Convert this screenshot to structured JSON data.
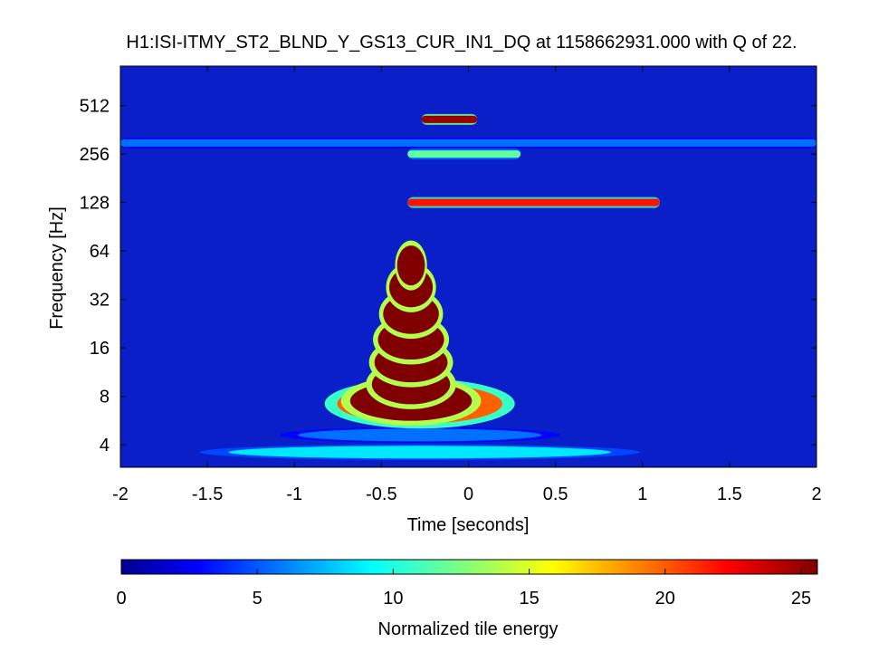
{
  "chart_data": {
    "type": "heatmap",
    "title": "H1:ISI-ITMY_ST2_BLND_Y_GS13_CUR_IN1_DQ at 1158662931.000 with Q of 22.",
    "xlabel": "Time [seconds]",
    "ylabel": "Frequency [Hz]",
    "xlim": [
      -2,
      2
    ],
    "x_ticks": [
      -2,
      -1.5,
      -1,
      -0.5,
      0,
      0.5,
      1,
      1.5,
      2
    ],
    "y_scale": "log2",
    "ylim": [
      2.9,
      900
    ],
    "y_ticks": [
      4,
      8,
      16,
      32,
      64,
      128,
      256,
      512
    ],
    "colorbar": {
      "label": "Normalized tile energy",
      "range": [
        0,
        25.6
      ],
      "ticks": [
        0,
        5,
        10,
        15,
        20,
        25
      ],
      "colormap": "jet",
      "placement": "bottom"
    },
    "features": [
      {
        "kind": "glitch",
        "t_center": -0.33,
        "f_low": 3,
        "f_high": 60,
        "max_energy": 25.6
      },
      {
        "kind": "line",
        "f": 128,
        "t_start": -0.35,
        "t_end": 1.1,
        "energy": 22
      },
      {
        "kind": "line",
        "f": 256,
        "t_start": -0.35,
        "t_end": 0.3,
        "energy": 12
      },
      {
        "kind": "line",
        "f": 420,
        "t_start": -0.27,
        "t_end": 0.05,
        "energy": 25
      },
      {
        "kind": "line",
        "f": 300,
        "t_start": -2,
        "t_end": 2,
        "energy": 6
      }
    ]
  }
}
